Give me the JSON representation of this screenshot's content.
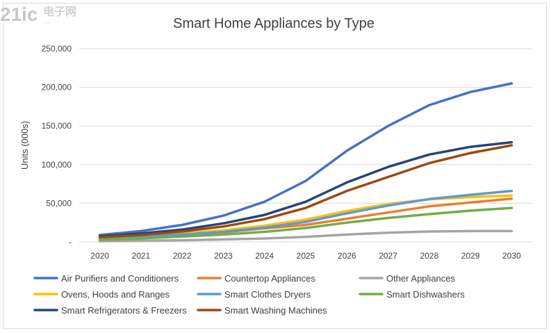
{
  "chart_data": {
    "type": "line",
    "title": "Smart Home Appliances by Type",
    "xlabel": "",
    "ylabel": "Units (000s)",
    "x": [
      "2020",
      "2021",
      "2022",
      "2023",
      "2024",
      "2025",
      "2026",
      "2027",
      "2028",
      "2029",
      "2030"
    ],
    "ylim": [
      0,
      250000
    ],
    "yticks": [
      "-",
      "50,000",
      "100,000",
      "150,000",
      "200,000",
      "250,000"
    ],
    "grid": true,
    "legend_position": "bottom",
    "series": [
      {
        "name": "Air Purifiers and Conditioners",
        "color": "#4472c4",
        "values": [
          9000,
          14000,
          22000,
          34000,
          52000,
          79000,
          118000,
          150000,
          177000,
          194000,
          205000
        ]
      },
      {
        "name": "Countertop Appliances",
        "color": "#ed7d31",
        "values": [
          3500,
          5500,
          8500,
          12500,
          17500,
          22000,
          30000,
          38000,
          46000,
          51000,
          56000
        ]
      },
      {
        "name": "Other Appliances",
        "color": "#a5a5a5",
        "values": [
          1000,
          1500,
          2200,
          3200,
          4500,
          6500,
          9500,
          12000,
          13500,
          14000,
          14000
        ]
      },
      {
        "name": "Ovens, Hoods and Ranges",
        "color": "#ffc000",
        "values": [
          5000,
          7500,
          11000,
          15000,
          21000,
          29000,
          40000,
          49000,
          55000,
          58000,
          60000
        ]
      },
      {
        "name": "Smart Clothes Dryers",
        "color": "#5b9bd5",
        "values": [
          4500,
          6500,
          9500,
          13000,
          18500,
          26000,
          37000,
          47000,
          55500,
          61000,
          66000
        ]
      },
      {
        "name": "Smart Dishwashers",
        "color": "#70ad47",
        "values": [
          3000,
          4500,
          7000,
          9500,
          13000,
          18000,
          25000,
          31000,
          36000,
          40500,
          44000
        ]
      },
      {
        "name": "Smart Refrigerators & Freezers",
        "color": "#264478",
        "values": [
          7500,
          11000,
          16000,
          24000,
          35000,
          52000,
          77000,
          97000,
          113000,
          123000,
          129000
        ]
      },
      {
        "name": "Smart Washing Machines",
        "color": "#9e480e",
        "values": [
          6000,
          9000,
          13500,
          20000,
          29500,
          44000,
          66000,
          84000,
          102000,
          115000,
          125000
        ]
      }
    ]
  },
  "watermark": {
    "logo_text": "21ic电子网"
  }
}
